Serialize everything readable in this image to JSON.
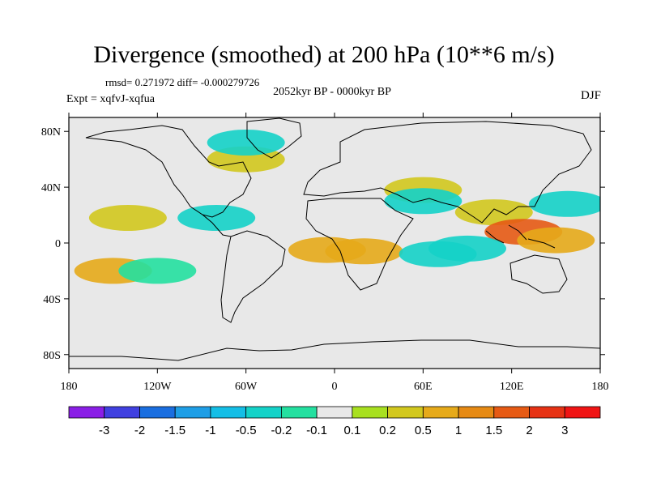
{
  "chart_data": {
    "type": "heatmap",
    "title": "Divergence (smoothed) at 200 hPa (10**6 m/s)",
    "stats": "rmsd= 0.271972 diff= -0.000279726",
    "experiment": "Expt = xqfvJ-xqfua",
    "period": "2052kyr BP - 0000kyr BP",
    "season": "DJF",
    "xlim": [
      -180,
      180
    ],
    "ylim": [
      -90,
      90
    ],
    "x_ticks": [
      {
        "value": -180,
        "label": "180"
      },
      {
        "value": -120,
        "label": "120W"
      },
      {
        "value": -60,
        "label": "60W"
      },
      {
        "value": 0,
        "label": "0"
      },
      {
        "value": 60,
        "label": "60E"
      },
      {
        "value": 120,
        "label": "120E"
      },
      {
        "value": 180,
        "label": "180"
      }
    ],
    "y_ticks": [
      {
        "value": 80,
        "label": "80N"
      },
      {
        "value": 40,
        "label": "40N"
      },
      {
        "value": 0,
        "label": "0"
      },
      {
        "value": -40,
        "label": "40S"
      },
      {
        "value": -80,
        "label": "80S"
      }
    ],
    "colorbar": {
      "colors": [
        "#8a1ee6",
        "#4040e0",
        "#1a6ee0",
        "#1e9ee6",
        "#14bee6",
        "#14d2c8",
        "#24e0a0",
        "#e8e8e8",
        "#a8e020",
        "#d2c81e",
        "#e6aa1a",
        "#e68a14",
        "#e65a14",
        "#e63214",
        "#f01414"
      ],
      "labels": [
        "-3",
        "-2",
        "-1.5",
        "-1",
        "-0.5",
        "-0.2",
        "-0.1",
        "0.1",
        "0.2",
        "0.5",
        "1",
        "1.5",
        "2",
        "3"
      ]
    },
    "anomalies": [
      {
        "lon": 60,
        "lat": 38,
        "value": 0.4
      },
      {
        "lon": 60,
        "lat": 30,
        "value": -0.4
      },
      {
        "lon": 108,
        "lat": 22,
        "value": 0.35
      },
      {
        "lon": 128,
        "lat": 8,
        "value": 1.5
      },
      {
        "lon": 150,
        "lat": 2,
        "value": 0.6
      },
      {
        "lon": 158,
        "lat": 28,
        "value": -0.3
      },
      {
        "lon": -5,
        "lat": -5,
        "value": 0.8
      },
      {
        "lon": 20,
        "lat": -6,
        "value": 0.8
      },
      {
        "lon": 70,
        "lat": -8,
        "value": -0.4
      },
      {
        "lon": 90,
        "lat": -4,
        "value": -0.3
      },
      {
        "lon": -140,
        "lat": 18,
        "value": 0.3
      },
      {
        "lon": -150,
        "lat": -20,
        "value": 0.5
      },
      {
        "lon": -80,
        "lat": 18,
        "value": -0.3
      },
      {
        "lon": -120,
        "lat": -20,
        "value": -0.2
      },
      {
        "lon": -60,
        "lat": 60,
        "value": 0.3
      },
      {
        "lon": -60,
        "lat": 72,
        "value": -0.3
      }
    ]
  }
}
